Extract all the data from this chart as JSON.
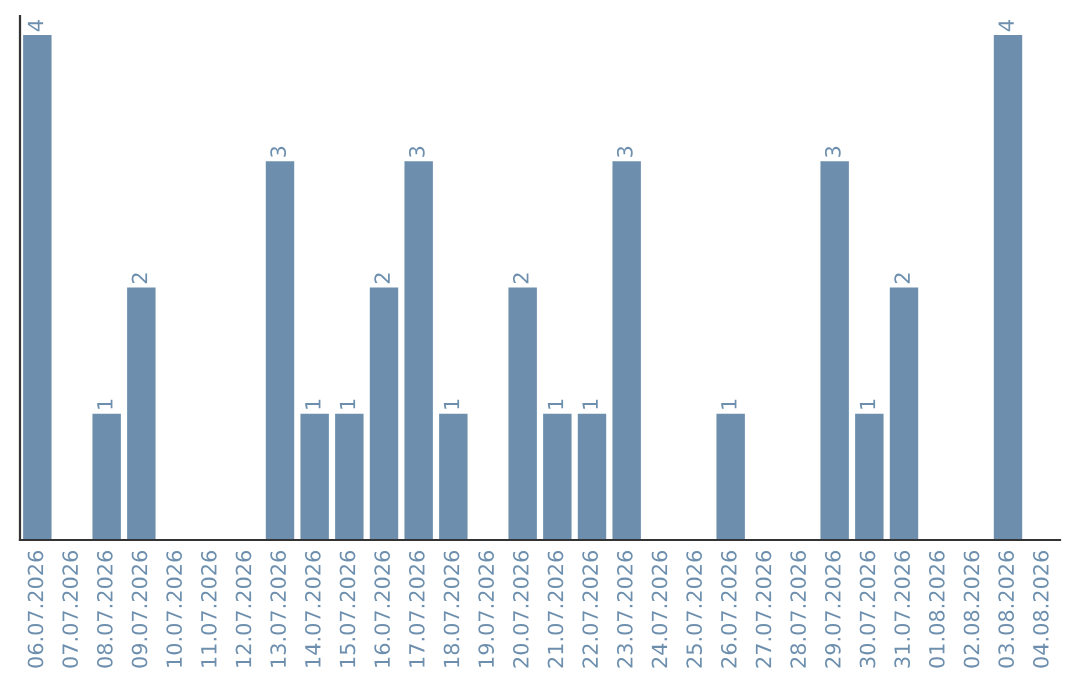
{
  "chart_data": {
    "type": "bar",
    "categories": [
      "06.07.2026",
      "07.07.2026",
      "08.07.2026",
      "09.07.2026",
      "10.07.2026",
      "11.07.2026",
      "12.07.2026",
      "13.07.2026",
      "14.07.2026",
      "15.07.2026",
      "16.07.2026",
      "17.07.2026",
      "18.07.2026",
      "19.07.2026",
      "20.07.2026",
      "21.07.2026",
      "22.07.2026",
      "23.07.2026",
      "24.07.2026",
      "25.07.2026",
      "26.07.2026",
      "27.07.2026",
      "28.07.2026",
      "29.07.2026",
      "30.07.2026",
      "31.07.2026",
      "01.08.2026",
      "02.08.2026",
      "03.08.2026",
      "04.08.2026"
    ],
    "values": [
      4,
      0,
      1,
      2,
      0,
      0,
      0,
      3,
      1,
      1,
      2,
      3,
      1,
      0,
      2,
      1,
      1,
      3,
      0,
      0,
      1,
      0,
      0,
      3,
      1,
      2,
      0,
      0,
      4,
      0
    ],
    "value_labels": [
      "4",
      null,
      "1",
      "2",
      null,
      null,
      null,
      "3",
      "1",
      "1",
      "2",
      "3",
      "1",
      null,
      "2",
      "1",
      "1",
      "3",
      null,
      null,
      "1",
      null,
      null,
      "3",
      "1",
      "2",
      null,
      null,
      "4",
      null
    ],
    "color": "#6d8fad",
    "ylim": [
      0,
      4.15
    ],
    "tick_labels": "x",
    "grid": false
  }
}
